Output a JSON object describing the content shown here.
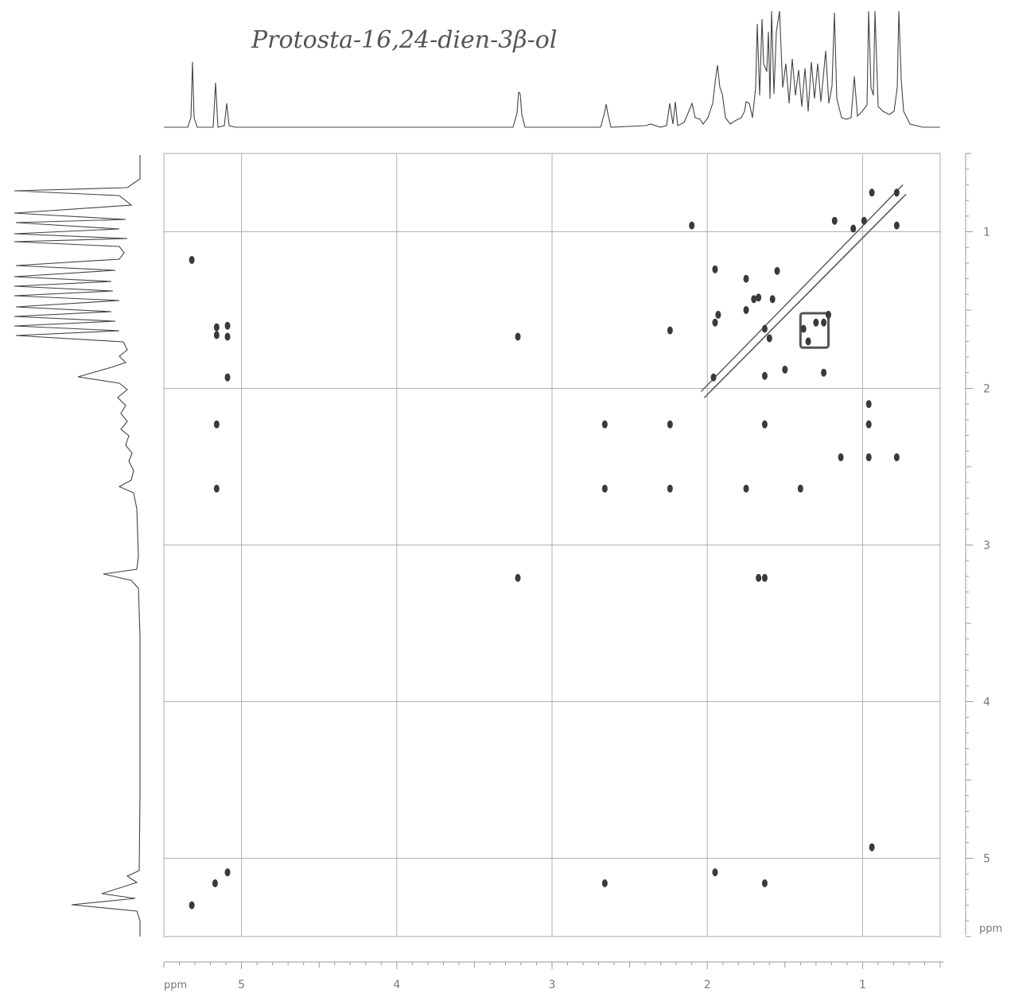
{
  "chart_data": {
    "type": "scatter",
    "title": "Protosta-16,24-dien-3β-ol",
    "xlabel": "ppm",
    "ylabel": "ppm",
    "xlim": [
      5.5,
      0.5
    ],
    "ylim": [
      0.5,
      5.5
    ],
    "grid": true,
    "x_ticks": [
      5,
      4,
      3,
      2,
      1
    ],
    "y_ticks": [
      1,
      2,
      3,
      4,
      5
    ],
    "x_tick_labels": [
      "5",
      "4",
      "3",
      "2",
      "1"
    ],
    "y_tick_labels": [
      "1",
      "2",
      "3",
      "4",
      "5"
    ],
    "series": [
      {
        "values": [
          {
            "x": 5.32,
            "y": 5.3
          },
          {
            "x": 5.17,
            "y": 5.16
          },
          {
            "x": 5.09,
            "y": 5.09
          },
          {
            "x": 5.32,
            "y": 1.18
          },
          {
            "x": 5.16,
            "y": 1.61
          },
          {
            "x": 5.09,
            "y": 1.6
          },
          {
            "x": 5.16,
            "y": 1.66
          },
          {
            "x": 5.09,
            "y": 1.67
          },
          {
            "x": 5.09,
            "y": 1.93
          },
          {
            "x": 5.16,
            "y": 2.23
          },
          {
            "x": 5.16,
            "y": 2.64
          },
          {
            "x": 3.22,
            "y": 1.67
          },
          {
            "x": 3.22,
            "y": 3.21
          },
          {
            "x": 2.66,
            "y": 2.23
          },
          {
            "x": 2.66,
            "y": 2.64
          },
          {
            "x": 2.66,
            "y": 5.16
          },
          {
            "x": 2.24,
            "y": 1.63
          },
          {
            "x": 2.24,
            "y": 2.23
          },
          {
            "x": 2.24,
            "y": 2.64
          },
          {
            "x": 2.1,
            "y": 0.96
          },
          {
            "x": 1.95,
            "y": 1.24
          },
          {
            "x": 1.93,
            "y": 1.53
          },
          {
            "x": 1.95,
            "y": 1.58
          },
          {
            "x": 1.96,
            "y": 1.93
          },
          {
            "x": 1.95,
            "y": 5.09
          },
          {
            "x": 1.75,
            "y": 1.3
          },
          {
            "x": 1.75,
            "y": 1.5
          },
          {
            "x": 1.75,
            "y": 2.64
          },
          {
            "x": 1.7,
            "y": 1.43
          },
          {
            "x": 1.67,
            "y": 1.42
          },
          {
            "x": 1.67,
            "y": 3.21
          },
          {
            "x": 1.63,
            "y": 1.62
          },
          {
            "x": 1.6,
            "y": 1.68
          },
          {
            "x": 1.63,
            "y": 1.92
          },
          {
            "x": 1.63,
            "y": 2.23
          },
          {
            "x": 1.63,
            "y": 3.21
          },
          {
            "x": 1.63,
            "y": 5.16
          },
          {
            "x": 1.58,
            "y": 1.43
          },
          {
            "x": 1.55,
            "y": 1.25
          },
          {
            "x": 1.5,
            "y": 1.88
          },
          {
            "x": 1.4,
            "y": 2.64
          },
          {
            "x": 1.38,
            "y": 1.62
          },
          {
            "x": 1.35,
            "y": 1.7
          },
          {
            "x": 1.3,
            "y": 1.58
          },
          {
            "x": 1.25,
            "y": 1.58
          },
          {
            "x": 1.25,
            "y": 1.9
          },
          {
            "x": 1.22,
            "y": 1.53
          },
          {
            "x": 1.18,
            "y": 0.93
          },
          {
            "x": 1.14,
            "y": 2.44
          },
          {
            "x": 1.06,
            "y": 0.98
          },
          {
            "x": 0.99,
            "y": 0.93
          },
          {
            "x": 0.96,
            "y": 2.1
          },
          {
            "x": 0.96,
            "y": 2.23
          },
          {
            "x": 0.96,
            "y": 2.44
          },
          {
            "x": 0.94,
            "y": 0.75
          },
          {
            "x": 0.94,
            "y": 4.93
          },
          {
            "x": 0.78,
            "y": 0.75
          },
          {
            "x": 0.78,
            "y": 0.96
          },
          {
            "x": 0.78,
            "y": 2.44
          }
        ]
      }
    ]
  }
}
